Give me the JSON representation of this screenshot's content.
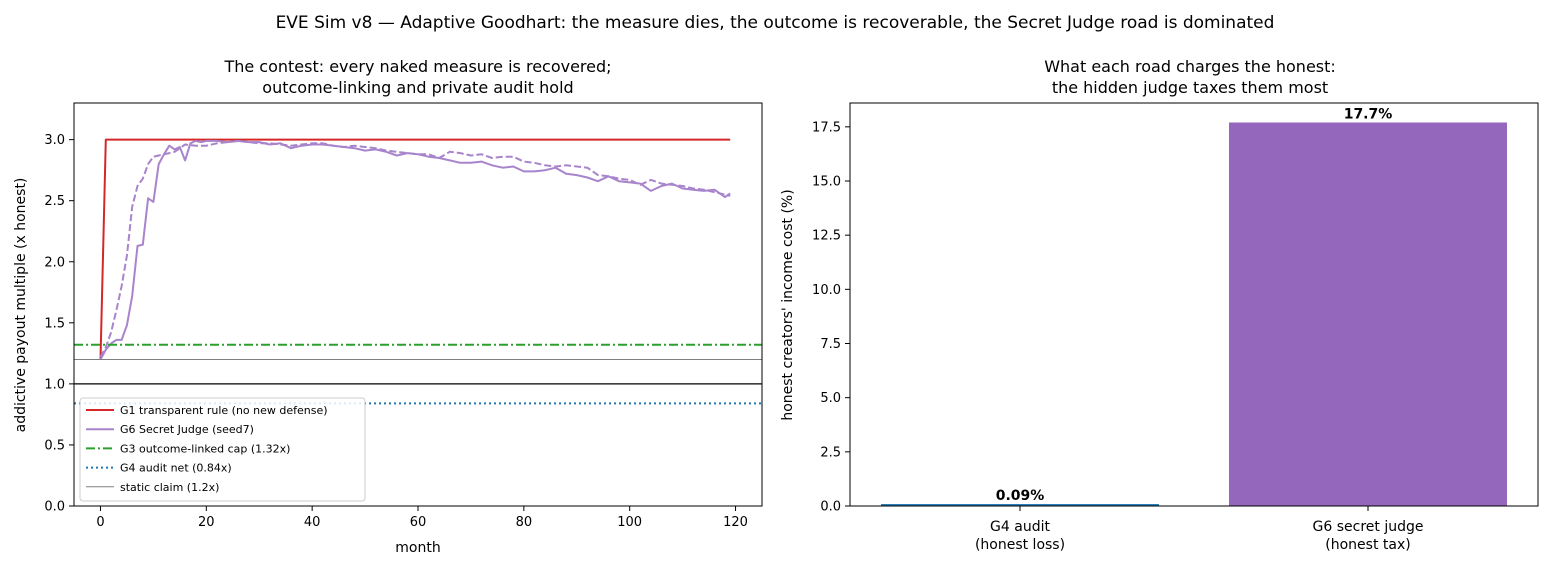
{
  "suptitle": "EVE Sim v8 — Adaptive Goodhart: the measure dies, the outcome is recoverable, the Secret Judge road is dominated",
  "chart_data": [
    {
      "type": "line",
      "title_line1": "The contest: every naked measure is recovered;",
      "title_line2": "outcome-linking and private audit hold",
      "xlabel": "month",
      "ylabel": "addictive payout multiple (x honest)",
      "xlim": [
        -5,
        125
      ],
      "ylim": [
        0,
        3.3
      ],
      "xticks": [
        0,
        20,
        40,
        60,
        80,
        100,
        120
      ],
      "yticks": [
        0.0,
        0.5,
        1.0,
        1.5,
        2.0,
        2.5,
        3.0
      ],
      "reference_line": {
        "y": 1.0,
        "color": "#000000"
      },
      "series": [
        {
          "name": "G1 transparent rule (no new defense)",
          "color": "#d62728",
          "style": "solid",
          "points": [
            [
              0,
              1.2
            ],
            [
              1,
              3.0
            ],
            [
              119,
              3.0
            ]
          ]
        },
        {
          "name": "G6 Secret Judge (seed7)",
          "color": "#a884cc",
          "style": "solid",
          "points": [
            [
              0,
              1.2
            ],
            [
              1,
              1.28
            ],
            [
              2,
              1.33
            ],
            [
              3,
              1.36
            ],
            [
              4,
              1.36
            ],
            [
              5,
              1.48
            ],
            [
              6,
              1.72
            ],
            [
              7,
              2.13
            ],
            [
              8,
              2.14
            ],
            [
              9,
              2.52
            ],
            [
              10,
              2.49
            ],
            [
              11,
              2.8
            ],
            [
              12,
              2.88
            ],
            [
              13,
              2.95
            ],
            [
              14,
              2.92
            ],
            [
              15,
              2.94
            ],
            [
              16,
              2.83
            ],
            [
              17,
              2.97
            ],
            [
              18,
              2.99
            ],
            [
              19,
              2.98
            ],
            [
              20,
              2.99
            ],
            [
              22,
              2.99
            ],
            [
              24,
              2.98
            ],
            [
              26,
              2.99
            ],
            [
              28,
              2.98
            ],
            [
              30,
              2.98
            ],
            [
              32,
              2.96
            ],
            [
              34,
              2.97
            ],
            [
              36,
              2.93
            ],
            [
              38,
              2.95
            ],
            [
              40,
              2.96
            ],
            [
              42,
              2.96
            ],
            [
              44,
              2.95
            ],
            [
              46,
              2.94
            ],
            [
              48,
              2.93
            ],
            [
              50,
              2.91
            ],
            [
              52,
              2.92
            ],
            [
              54,
              2.9
            ],
            [
              56,
              2.87
            ],
            [
              58,
              2.89
            ],
            [
              60,
              2.88
            ],
            [
              62,
              2.86
            ],
            [
              64,
              2.85
            ],
            [
              66,
              2.83
            ],
            [
              68,
              2.81
            ],
            [
              70,
              2.81
            ],
            [
              72,
              2.82
            ],
            [
              74,
              2.79
            ],
            [
              76,
              2.77
            ],
            [
              78,
              2.78
            ],
            [
              80,
              2.74
            ],
            [
              82,
              2.74
            ],
            [
              84,
              2.75
            ],
            [
              86,
              2.77
            ],
            [
              88,
              2.72
            ],
            [
              90,
              2.71
            ],
            [
              92,
              2.69
            ],
            [
              94,
              2.66
            ],
            [
              96,
              2.7
            ],
            [
              98,
              2.66
            ],
            [
              100,
              2.65
            ],
            [
              102,
              2.64
            ],
            [
              104,
              2.58
            ],
            [
              106,
              2.62
            ],
            [
              108,
              2.64
            ],
            [
              110,
              2.6
            ],
            [
              112,
              2.59
            ],
            [
              114,
              2.58
            ],
            [
              116,
              2.59
            ],
            [
              118,
              2.53
            ],
            [
              119,
              2.56
            ]
          ]
        },
        {
          "name": "",
          "color": "#a884cc",
          "style": "dashed",
          "points": [
            [
              0,
              1.22
            ],
            [
              1,
              1.3
            ],
            [
              2,
              1.42
            ],
            [
              3,
              1.6
            ],
            [
              4,
              1.8
            ],
            [
              5,
              2.05
            ],
            [
              6,
              2.45
            ],
            [
              7,
              2.62
            ],
            [
              8,
              2.68
            ],
            [
              9,
              2.8
            ],
            [
              10,
              2.86
            ],
            [
              11,
              2.87
            ],
            [
              12,
              2.88
            ],
            [
              13,
              2.89
            ],
            [
              14,
              2.9
            ],
            [
              15,
              2.93
            ],
            [
              16,
              2.96
            ],
            [
              18,
              2.95
            ],
            [
              20,
              2.95
            ],
            [
              22,
              2.97
            ],
            [
              24,
              2.98
            ],
            [
              26,
              2.99
            ],
            [
              28,
              2.98
            ],
            [
              30,
              2.97
            ],
            [
              32,
              2.97
            ],
            [
              34,
              2.96
            ],
            [
              36,
              2.95
            ],
            [
              38,
              2.96
            ],
            [
              40,
              2.97
            ],
            [
              42,
              2.97
            ],
            [
              44,
              2.95
            ],
            [
              46,
              2.94
            ],
            [
              48,
              2.95
            ],
            [
              50,
              2.94
            ],
            [
              52,
              2.93
            ],
            [
              54,
              2.91
            ],
            [
              56,
              2.9
            ],
            [
              58,
              2.89
            ],
            [
              60,
              2.88
            ],
            [
              62,
              2.88
            ],
            [
              64,
              2.85
            ],
            [
              66,
              2.9
            ],
            [
              68,
              2.89
            ],
            [
              70,
              2.87
            ],
            [
              72,
              2.88
            ],
            [
              74,
              2.85
            ],
            [
              76,
              2.86
            ],
            [
              78,
              2.86
            ],
            [
              80,
              2.82
            ],
            [
              82,
              2.81
            ],
            [
              84,
              2.79
            ],
            [
              86,
              2.78
            ],
            [
              88,
              2.79
            ],
            [
              90,
              2.78
            ],
            [
              92,
              2.77
            ],
            [
              94,
              2.71
            ],
            [
              96,
              2.7
            ],
            [
              98,
              2.68
            ],
            [
              100,
              2.67
            ],
            [
              102,
              2.63
            ],
            [
              104,
              2.67
            ],
            [
              106,
              2.64
            ],
            [
              108,
              2.63
            ],
            [
              110,
              2.62
            ],
            [
              112,
              2.6
            ],
            [
              114,
              2.59
            ],
            [
              116,
              2.57
            ],
            [
              118,
              2.55
            ],
            [
              119,
              2.54
            ]
          ]
        },
        {
          "name": "G3 outcome-linked cap (1.32x)",
          "color": "#2ca02c",
          "style": "dashdot",
          "hline": 1.32
        },
        {
          "name": "G4 audit net (0.84x)",
          "color": "#1f77b4",
          "style": "dotted",
          "hline": 0.84
        },
        {
          "name": "static claim (1.2x)",
          "color": "#808080",
          "style": "thin",
          "hline": 1.2
        }
      ],
      "legend_location": "lower-left"
    },
    {
      "type": "bar",
      "title_line1": "What each road charges the honest:",
      "title_line2": "the hidden judge taxes them most",
      "ylabel": "honest creators' income cost (%)",
      "ylim": [
        0,
        18.6
      ],
      "yticks": [
        "0.0",
        "2.5",
        "5.0",
        "7.5",
        "10.0",
        "12.5",
        "15.0",
        "17.5"
      ],
      "categories_line1": [
        "G4 audit",
        "G6 secret judge"
      ],
      "categories_line2": [
        "(honest loss)",
        "(honest tax)"
      ],
      "values": [
        0.09,
        17.7
      ],
      "value_labels": [
        "0.09%",
        "17.7%"
      ],
      "colors": [
        "#1f77b4",
        "#9467bd"
      ]
    }
  ]
}
